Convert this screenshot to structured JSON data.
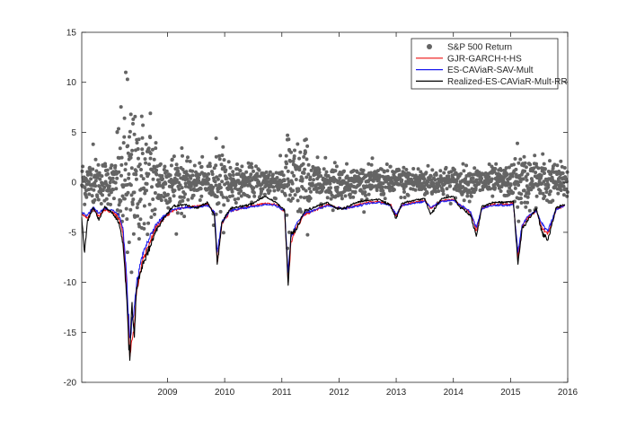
{
  "chart_data": {
    "type": "line",
    "x_ticks": [
      2009,
      2010,
      2011,
      2012,
      2013,
      2014,
      2015,
      2016
    ],
    "xlim": [
      2008.0,
      2016.5
    ],
    "ylim": [
      -20,
      15
    ],
    "y_ticks": [
      -20,
      -15,
      -10,
      -5,
      0,
      5,
      10,
      15
    ],
    "grid": false,
    "legend_position": "top-right",
    "scatter_series": {
      "name": "S&P 500 Return",
      "color": "#646464",
      "notable_points": [
        [
          2008.77,
          11.0
        ],
        [
          2008.8,
          10.3
        ],
        [
          2008.86,
          6.8
        ],
        [
          2008.9,
          6.3
        ],
        [
          2009.05,
          6.6
        ],
        [
          2009.2,
          6.9
        ],
        [
          2008.62,
          5.0
        ],
        [
          2008.92,
          4.8
        ],
        [
          2009.0,
          4.3
        ],
        [
          2010.35,
          4.4
        ],
        [
          2011.6,
          4.7
        ],
        [
          2011.62,
          4.3
        ],
        [
          2011.9,
          4.2
        ],
        [
          2015.62,
          3.9
        ],
        [
          2008.2,
          3.8
        ],
        [
          2008.87,
          -9.0
        ],
        [
          2008.8,
          -7.0
        ],
        [
          2008.83,
          -6.0
        ],
        [
          2009.15,
          -5.2
        ],
        [
          2011.6,
          -6.6
        ],
        [
          2011.63,
          -5.0
        ],
        [
          2015.64,
          -3.9
        ],
        [
          2010.35,
          -3.2
        ]
      ]
    },
    "series": [
      {
        "name": "GJR-GARCH-t-HS",
        "color": "#ee1111",
        "x": [
          2008.0,
          2008.1,
          2008.2,
          2008.3,
          2008.4,
          2008.55,
          2008.65,
          2008.72,
          2008.78,
          2008.84,
          2008.9,
          2008.96,
          2009.05,
          2009.15,
          2009.3,
          2009.45,
          2009.6,
          2009.8,
          2010.0,
          2010.2,
          2010.32,
          2010.37,
          2010.45,
          2010.6,
          2010.8,
          2011.0,
          2011.2,
          2011.4,
          2011.55,
          2011.61,
          2011.66,
          2011.75,
          2011.9,
          2012.1,
          2012.3,
          2012.45,
          2012.6,
          2012.8,
          2013.0,
          2013.2,
          2013.4,
          2013.5,
          2013.6,
          2013.8,
          2014.0,
          2014.1,
          2014.3,
          2014.5,
          2014.6,
          2014.8,
          2014.9,
          2015.0,
          2015.2,
          2015.4,
          2015.55,
          2015.63,
          2015.7,
          2015.8,
          2015.95,
          2016.05,
          2016.15,
          2016.3,
          2016.45
        ],
        "values": [
          -3.2,
          -3.6,
          -2.6,
          -3.4,
          -2.7,
          -3.0,
          -3.6,
          -5.0,
          -10.0,
          -17.5,
          -15.0,
          -11.0,
          -8.0,
          -6.5,
          -4.5,
          -3.5,
          -2.8,
          -2.5,
          -2.4,
          -2.2,
          -3.0,
          -8.0,
          -4.2,
          -2.8,
          -2.6,
          -2.3,
          -2.1,
          -2.2,
          -3.0,
          -10.0,
          -6.0,
          -4.5,
          -3.2,
          -2.7,
          -2.2,
          -2.5,
          -2.6,
          -2.3,
          -2.0,
          -1.9,
          -2.2,
          -3.4,
          -2.3,
          -2.0,
          -1.8,
          -2.6,
          -1.8,
          -1.7,
          -2.2,
          -3.0,
          -4.8,
          -2.6,
          -2.2,
          -2.2,
          -2.1,
          -7.5,
          -4.5,
          -3.5,
          -2.8,
          -4.5,
          -5.2,
          -2.7,
          -2.3
        ]
      },
      {
        "name": "ES-CAViaR-SAV-Mult",
        "color": "#1a1aee",
        "x": [
          2008.0,
          2008.1,
          2008.2,
          2008.3,
          2008.4,
          2008.55,
          2008.65,
          2008.72,
          2008.78,
          2008.84,
          2008.9,
          2008.96,
          2009.05,
          2009.15,
          2009.3,
          2009.45,
          2009.6,
          2009.8,
          2010.0,
          2010.2,
          2010.32,
          2010.37,
          2010.45,
          2010.6,
          2010.8,
          2011.0,
          2011.2,
          2011.4,
          2011.55,
          2011.61,
          2011.66,
          2011.75,
          2011.9,
          2012.1,
          2012.3,
          2012.45,
          2012.6,
          2012.8,
          2013.0,
          2013.2,
          2013.4,
          2013.5,
          2013.6,
          2013.8,
          2014.0,
          2014.1,
          2014.3,
          2014.5,
          2014.6,
          2014.8,
          2014.9,
          2015.0,
          2015.2,
          2015.4,
          2015.55,
          2015.63,
          2015.7,
          2015.8,
          2015.95,
          2016.05,
          2016.15,
          2016.3,
          2016.45
        ],
        "values": [
          -3.0,
          -3.3,
          -2.5,
          -3.1,
          -2.6,
          -2.8,
          -3.3,
          -4.5,
          -9.0,
          -15.5,
          -13.5,
          -10.0,
          -7.5,
          -6.0,
          -4.2,
          -3.3,
          -2.7,
          -2.5,
          -2.5,
          -2.3,
          -2.9,
          -7.0,
          -4.0,
          -2.8,
          -2.6,
          -2.4,
          -2.2,
          -2.3,
          -2.9,
          -9.0,
          -5.5,
          -4.2,
          -3.1,
          -2.7,
          -2.3,
          -2.5,
          -2.6,
          -2.4,
          -2.1,
          -2.0,
          -2.3,
          -3.2,
          -2.3,
          -2.1,
          -1.9,
          -2.5,
          -1.9,
          -1.8,
          -2.2,
          -2.9,
          -4.5,
          -2.6,
          -2.3,
          -2.3,
          -2.2,
          -7.0,
          -4.3,
          -3.4,
          -2.8,
          -4.2,
          -4.9,
          -2.7,
          -2.3
        ]
      },
      {
        "name": "Realized-ES-CAViaR-Mult-RR",
        "color": "#000000",
        "x": [
          2008.0,
          2008.05,
          2008.1,
          2008.2,
          2008.3,
          2008.4,
          2008.55,
          2008.65,
          2008.72,
          2008.78,
          2008.84,
          2008.88,
          2008.92,
          2008.96,
          2009.05,
          2009.15,
          2009.3,
          2009.45,
          2009.6,
          2009.8,
          2010.0,
          2010.2,
          2010.32,
          2010.37,
          2010.45,
          2010.6,
          2010.8,
          2011.0,
          2011.2,
          2011.4,
          2011.55,
          2011.61,
          2011.66,
          2011.75,
          2011.9,
          2012.1,
          2012.3,
          2012.45,
          2012.6,
          2012.8,
          2013.0,
          2013.2,
          2013.4,
          2013.5,
          2013.6,
          2013.8,
          2014.0,
          2014.1,
          2014.3,
          2014.5,
          2014.6,
          2014.8,
          2014.9,
          2015.0,
          2015.2,
          2015.4,
          2015.55,
          2015.63,
          2015.7,
          2015.8,
          2015.95,
          2016.05,
          2016.15,
          2016.3,
          2016.45
        ],
        "values": [
          -3.5,
          -7.0,
          -3.8,
          -2.5,
          -3.8,
          -2.4,
          -3.2,
          -4.0,
          -6.0,
          -11.0,
          -17.8,
          -12.0,
          -15.5,
          -10.5,
          -8.5,
          -7.0,
          -4.8,
          -3.4,
          -2.4,
          -2.2,
          -2.6,
          -2.0,
          -3.3,
          -8.2,
          -4.0,
          -2.6,
          -2.4,
          -2.1,
          -1.4,
          -2.0,
          -2.8,
          -10.3,
          -5.2,
          -4.7,
          -2.8,
          -2.4,
          -2.0,
          -2.6,
          -2.6,
          -2.0,
          -1.8,
          -1.7,
          -2.3,
          -3.6,
          -2.1,
          -1.8,
          -1.6,
          -3.2,
          -1.6,
          -1.4,
          -2.4,
          -3.2,
          -5.4,
          -2.4,
          -2.0,
          -2.0,
          -1.9,
          -8.2,
          -4.6,
          -3.8,
          -2.6,
          -5.0,
          -5.8,
          -2.5,
          -2.2
        ]
      }
    ]
  }
}
